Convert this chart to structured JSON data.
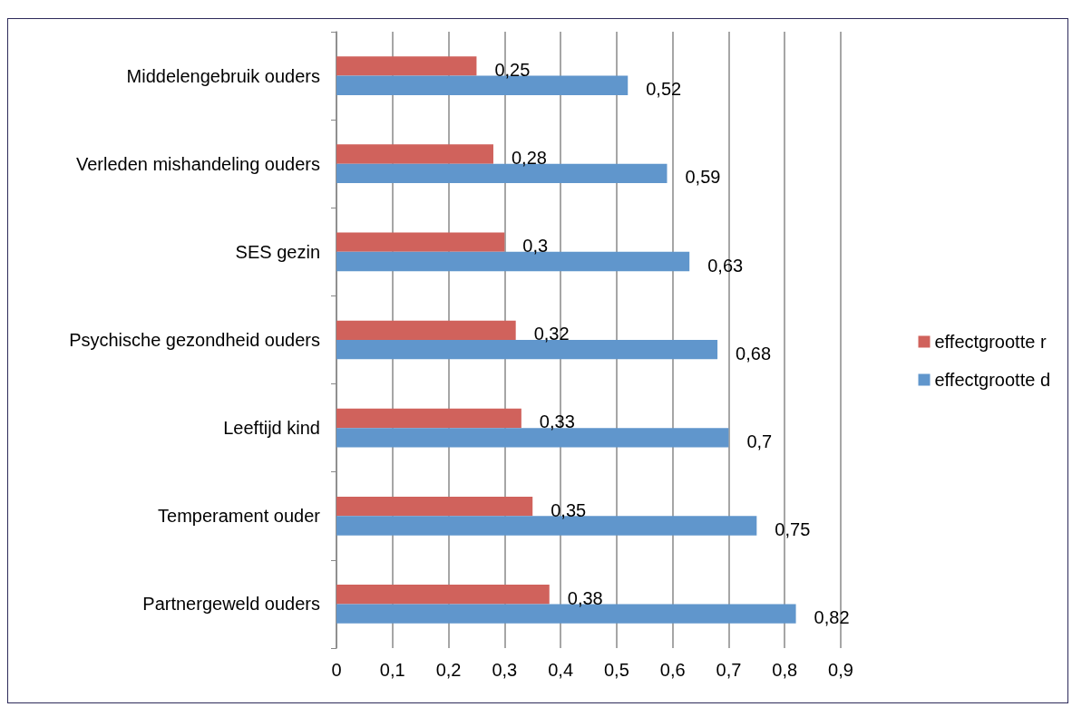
{
  "chart_data": {
    "type": "bar",
    "orientation": "horizontal",
    "categories": [
      "Middelengebruik ouders",
      "Verleden mishandeling ouders",
      "SES gezin",
      "Psychische gezondheid ouders",
      "Leeftijd kind",
      "Temperament ouder",
      "Partnergeweld ouders"
    ],
    "series": [
      {
        "name": "effectgrootte r",
        "color": "#d0625c",
        "values": [
          0.25,
          0.28,
          0.3,
          0.32,
          0.33,
          0.35,
          0.38
        ],
        "value_labels": [
          "0,25",
          "0,28",
          "0,3",
          "0,32",
          "0,33",
          "0,35",
          "0,38"
        ]
      },
      {
        "name": "effectgrootte d",
        "color": "#6096cc",
        "values": [
          0.52,
          0.59,
          0.63,
          0.68,
          0.7,
          0.75,
          0.82
        ],
        "value_labels": [
          "0,52",
          "0,59",
          "0,63",
          "0,68",
          "0,7",
          "0,75",
          "0,82"
        ]
      }
    ],
    "xlim": [
      0,
      0.9
    ],
    "xticks": [
      0,
      {
        "value": 0.1,
        "label": "0,1"
      },
      {
        "value": 0.2,
        "label": "0,2"
      },
      {
        "value": 0.3,
        "label": "0,3"
      },
      {
        "value": 0.4,
        "label": "0,4"
      },
      {
        "value": 0.5,
        "label": "0,5"
      },
      {
        "value": 0.6,
        "label": "0,6"
      },
      {
        "value": 0.7,
        "label": "0,7"
      },
      {
        "value": 0.8,
        "label": "0,8"
      },
      {
        "value": 0.9,
        "label": "0,9"
      }
    ],
    "grid": "x",
    "legend": "right"
  }
}
